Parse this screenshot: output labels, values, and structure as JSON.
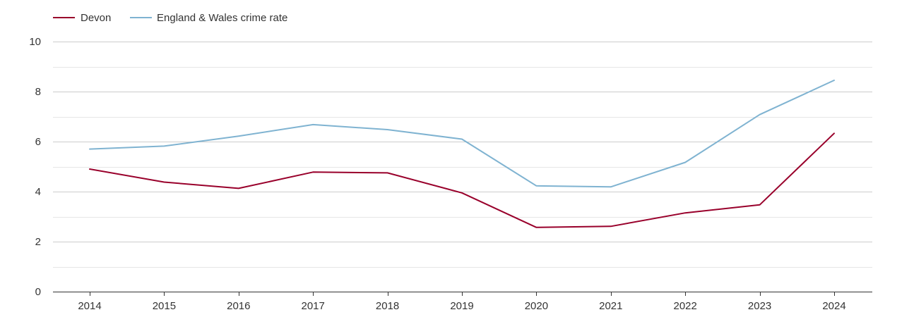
{
  "chart_data": {
    "type": "line",
    "title": "",
    "xlabel": "",
    "ylabel": "",
    "ylim": [
      0,
      10
    ],
    "y_ticks": [
      0,
      2,
      4,
      6,
      8,
      10
    ],
    "y_tick_labels": [
      "0",
      "2",
      "4",
      "6",
      "8",
      "10"
    ],
    "grid": true,
    "legend_position": "top-left",
    "categories": [
      "2014",
      "2015",
      "2016",
      "2017",
      "2018",
      "2019",
      "2020",
      "2021",
      "2022",
      "2023",
      "2024"
    ],
    "series": [
      {
        "name": "Devon",
        "color": "#99002b",
        "values": [
          4.9,
          4.38,
          4.13,
          4.78,
          4.75,
          3.95,
          2.57,
          2.61,
          3.15,
          3.47,
          6.33
        ]
      },
      {
        "name": "England & Wales crime rate",
        "color": "#7fb3d1",
        "values": [
          5.7,
          5.82,
          6.22,
          6.68,
          6.48,
          6.1,
          4.23,
          4.19,
          5.17,
          7.08,
          8.45
        ]
      }
    ]
  }
}
